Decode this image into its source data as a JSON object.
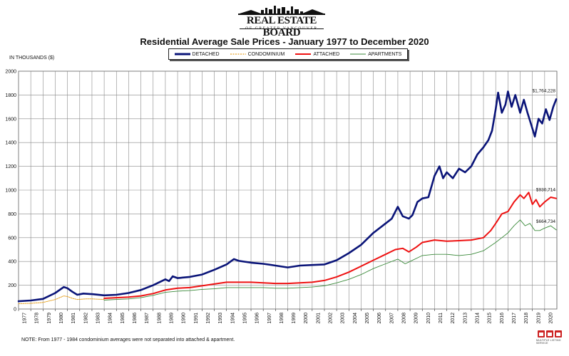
{
  "header": {
    "logo_title": "REAL ESTATE BOARD",
    "logo_subtitle": "OF GREATER VANCOUVER",
    "logo_icon": "city-skyline-icon"
  },
  "chart_title": "Residential Average Sale Prices  -  January 1977 to December 2020",
  "y_units": "IN THOUSANDS ($)",
  "note": "NOTE:  From 1977 - 1984 condominium averages were not separated into attached & apartment.",
  "footer_logos": [
    "rebgv-icon",
    "mls-icon",
    "realtor-icon"
  ],
  "footer_text": "MULTIPLE LISTING SERVICE",
  "chart_data": {
    "type": "line",
    "title": "Residential Average Sale Prices  -  January 1977 to December 2020",
    "xlabel": "",
    "ylabel": "IN THOUSANDS ($)",
    "xlim": [
      1977,
      2021
    ],
    "ylim": [
      0,
      2000
    ],
    "y_ticks": [
      0,
      200,
      400,
      600,
      800,
      1000,
      1200,
      1400,
      1600,
      1800,
      2000
    ],
    "x_tick_labels": [
      "1977",
      "1978",
      "1979",
      "1980",
      "1981",
      "1982",
      "1983",
      "1984",
      "1985",
      "1986",
      "1987",
      "1988",
      "1989",
      "1990",
      "1991",
      "1992",
      "1993",
      "1994",
      "1995",
      "1996",
      "1997",
      "1998",
      "1999",
      "2000",
      "2001",
      "2002",
      "2003",
      "2004",
      "2005",
      "2006",
      "2007",
      "2008",
      "2009",
      "2010",
      "2011",
      "2012",
      "2013",
      "2014",
      "2015",
      "2016",
      "2017",
      "2018",
      "2019",
      "2020"
    ],
    "grid": true,
    "legend_position": "top-center",
    "series": [
      {
        "name": "DETACHED",
        "color": "#0a1478",
        "style": "solid-thick",
        "x": [
          1977,
          1978,
          1979,
          1980,
          1980.7,
          1981,
          1981.4,
          1981.8,
          1982.3,
          1983,
          1984,
          1985,
          1986,
          1987,
          1988,
          1989,
          1989.3,
          1989.6,
          1990,
          1991,
          1992,
          1993,
          1994,
          1994.6,
          1995,
          1996,
          1997,
          1998,
          1999,
          2000,
          2001,
          2002,
          2003,
          2004,
          2005,
          2006,
          2007,
          2007.5,
          2008,
          2008.4,
          2008.9,
          2009.2,
          2009.6,
          2010,
          2010.5,
          2011,
          2011.4,
          2011.7,
          2012,
          2012.5,
          2013,
          2013.5,
          2014,
          2014.5,
          2015,
          2015.4,
          2015.7,
          2016,
          2016.2,
          2016.5,
          2016.8,
          2017,
          2017.3,
          2017.6,
          2018,
          2018.3,
          2018.6,
          2018.9,
          2019.2,
          2019.5,
          2019.8,
          2020.1,
          2020.4,
          2020.7,
          2020.95
        ],
        "values": [
          65,
          72,
          85,
          135,
          185,
          175,
          145,
          120,
          130,
          125,
          115,
          120,
          135,
          160,
          200,
          250,
          235,
          275,
          260,
          270,
          290,
          330,
          375,
          420,
          405,
          390,
          380,
          365,
          350,
          365,
          370,
          375,
          410,
          470,
          540,
          640,
          720,
          760,
          860,
          780,
          760,
          790,
          900,
          930,
          940,
          1120,
          1200,
          1100,
          1150,
          1100,
          1180,
          1150,
          1200,
          1300,
          1360,
          1420,
          1500,
          1680,
          1820,
          1650,
          1720,
          1830,
          1700,
          1800,
          1650,
          1760,
          1650,
          1550,
          1450,
          1600,
          1560,
          1680,
          1590,
          1700,
          1764
        ]
      },
      {
        "name": "CONDOMINIUM",
        "color": "#e6a020",
        "style": "dotted",
        "x": [
          1977,
          1978,
          1979,
          1980,
          1980.7,
          1981,
          1981.4,
          1981.8,
          1982.5,
          1983,
          1984
        ],
        "values": [
          45,
          48,
          55,
          80,
          110,
          105,
          90,
          80,
          85,
          85,
          80
        ]
      },
      {
        "name": "ATTACHED",
        "color": "#ee1111",
        "style": "solid",
        "x": [
          1984,
          1985,
          1986,
          1987,
          1988,
          1989,
          1990,
          1991,
          1992,
          1993,
          1994,
          1995,
          1996,
          1997,
          1998,
          1999,
          2000,
          2001,
          2002,
          2003,
          2004,
          2005,
          2006,
          2007,
          2007.8,
          2008.4,
          2008.9,
          2009.5,
          2010,
          2011,
          2012,
          2013,
          2014,
          2015,
          2015.6,
          2016,
          2016.5,
          2017,
          2017.5,
          2018,
          2018.3,
          2018.7,
          2019,
          2019.3,
          2019.6,
          2020,
          2020.5,
          2020.95
        ],
        "values": [
          90,
          95,
          100,
          110,
          130,
          160,
          175,
          180,
          195,
          210,
          225,
          225,
          225,
          220,
          215,
          215,
          220,
          225,
          240,
          270,
          310,
          360,
          410,
          460,
          500,
          510,
          480,
          520,
          560,
          580,
          570,
          575,
          580,
          600,
          660,
          720,
          800,
          820,
          900,
          960,
          930,
          980,
          880,
          920,
          860,
          900,
          940,
          930
        ]
      },
      {
        "name": "APARTMENTS",
        "color": "#3a8a3a",
        "style": "solid-thin",
        "x": [
          1984,
          1985,
          1986,
          1987,
          1988,
          1989,
          1990,
          1991,
          1992,
          1993,
          1994,
          1995,
          1996,
          1997,
          1998,
          1999,
          2000,
          2001,
          2002,
          2003,
          2004,
          2005,
          2006,
          2007,
          2008,
          2008.6,
          2009,
          2010,
          2011,
          2012,
          2013,
          2014,
          2015,
          2016,
          2016.5,
          2017,
          2017.5,
          2018,
          2018.4,
          2018.8,
          2019.2,
          2019.6,
          2020,
          2020.5,
          2020.95
        ],
        "values": [
          75,
          80,
          85,
          95,
          115,
          140,
          150,
          155,
          165,
          170,
          180,
          180,
          180,
          180,
          175,
          175,
          180,
          185,
          195,
          220,
          250,
          290,
          340,
          380,
          420,
          380,
          400,
          450,
          460,
          460,
          450,
          460,
          490,
          560,
          600,
          640,
          700,
          750,
          700,
          720,
          660,
          660,
          680,
          700,
          665
        ]
      }
    ],
    "annotations": [
      {
        "text": "$1,764,228",
        "x": 2021,
        "y": 1764
      },
      {
        "text": "$930,714",
        "x": 2021,
        "y": 930
      },
      {
        "text": "$664,734",
        "x": 2021,
        "y": 664
      }
    ]
  }
}
